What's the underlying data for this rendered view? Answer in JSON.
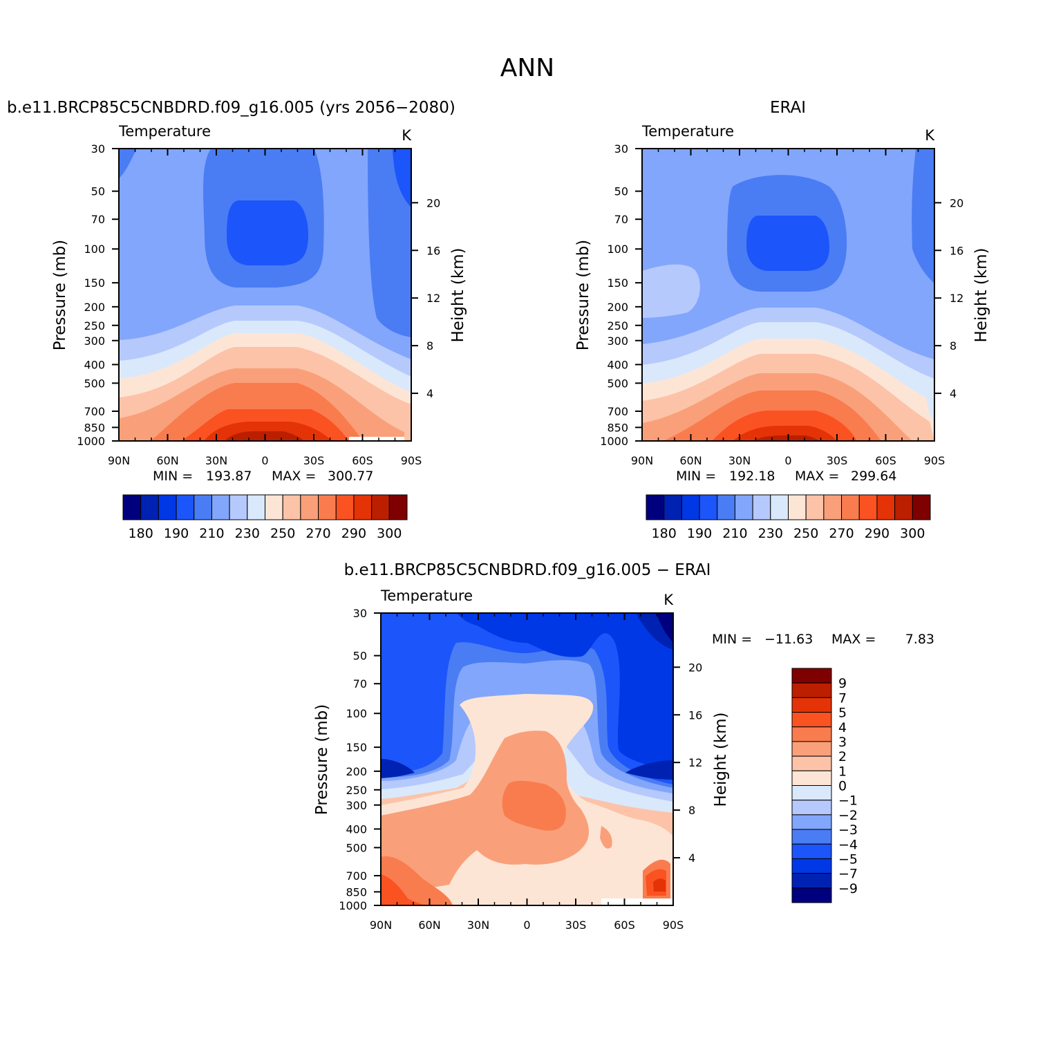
{
  "figure_title": "ANN",
  "palette": [
    "#00007f",
    "#0022b2",
    "#0038e6",
    "#1c55fa",
    "#4a7cf4",
    "#82a6fb",
    "#b5c9fd",
    "#dae8fb",
    "#fde5d6",
    "#fcc3a8",
    "#f9a07a",
    "#f97c4f",
    "#fb5222",
    "#e43306",
    "#bc1f00",
    "#7f0000"
  ],
  "chart_data": [
    {
      "type": "contour",
      "panel": "model",
      "title": "b.e11.BRCP85C5CNBDRD.f09_g16.005 (yrs 2056−2080)",
      "left_string": "Temperature",
      "right_string": "K",
      "xlabel": "",
      "ylabel": "Pressure (mb)",
      "ylabel_right": "Height (km)",
      "x_ticks": [
        "90N",
        "60N",
        "30N",
        "0",
        "30S",
        "60S",
        "90S"
      ],
      "y_ticks": [
        30,
        50,
        70,
        100,
        150,
        200,
        250,
        300,
        400,
        500,
        700,
        850,
        1000
      ],
      "y_scale": "log pressure, 1000 at bottom",
      "y_right_ticks": [
        4,
        8,
        12,
        16,
        20
      ],
      "stats": {
        "min_label": "MIN =",
        "min": "193.87",
        "max_label": "MAX =",
        "max": "300.77"
      },
      "colorbar": {
        "orientation": "horizontal",
        "labels": [
          "180",
          "190",
          "210",
          "230",
          "250",
          "270",
          "290",
          "300"
        ]
      }
    },
    {
      "type": "contour",
      "panel": "obs",
      "title": "ERAI",
      "left_string": "Temperature",
      "right_string": "K",
      "xlabel": "",
      "ylabel": "Pressure (mb)",
      "ylabel_right": "Height (km)",
      "x_ticks": [
        "90N",
        "60N",
        "30N",
        "0",
        "30S",
        "60S",
        "90S"
      ],
      "y_ticks": [
        30,
        50,
        70,
        100,
        150,
        200,
        250,
        300,
        400,
        500,
        700,
        850,
        1000
      ],
      "y_scale": "log pressure, 1000 at bottom",
      "y_right_ticks": [
        4,
        8,
        12,
        16,
        20
      ],
      "stats": {
        "min_label": "MIN =",
        "min": "192.18",
        "max_label": "MAX =",
        "max": "299.64"
      },
      "colorbar": {
        "orientation": "horizontal",
        "labels": [
          "180",
          "190",
          "210",
          "230",
          "250",
          "270",
          "290",
          "300"
        ]
      }
    },
    {
      "type": "contour",
      "panel": "diff",
      "title": "b.e11.BRCP85C5CNBDRD.f09_g16.005 − ERAI",
      "left_string": "Temperature",
      "right_string": "K",
      "xlabel": "",
      "ylabel": "Pressure (mb)",
      "ylabel_right": "Height (km)",
      "x_ticks": [
        "90N",
        "60N",
        "30N",
        "0",
        "30S",
        "60S",
        "90S"
      ],
      "y_ticks": [
        30,
        50,
        70,
        100,
        150,
        200,
        250,
        300,
        400,
        500,
        700,
        850,
        1000
      ],
      "y_scale": "log pressure, 1000 at bottom",
      "y_right_ticks": [
        4,
        8,
        12,
        16,
        20
      ],
      "stats": {
        "min_label": "MIN =",
        "min": "−11.63",
        "max_label": "MAX =",
        "max": "7.83"
      },
      "colorbar": {
        "orientation": "vertical",
        "labels": [
          "9",
          "7",
          "5",
          "4",
          "3",
          "2",
          "1",
          "0",
          "−1",
          "−2",
          "−3",
          "−4",
          "−5",
          "−7",
          "−9"
        ]
      }
    }
  ]
}
